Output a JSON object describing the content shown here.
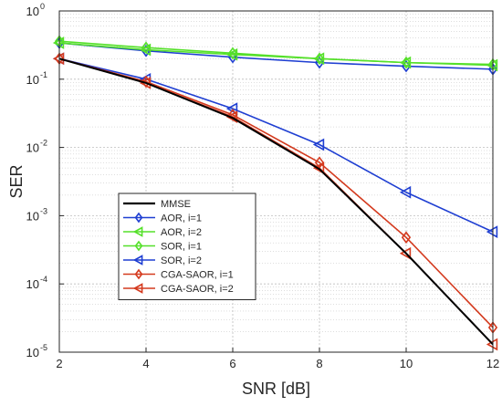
{
  "chart_data": {
    "type": "line",
    "xlabel": "SNR [dB]",
    "ylabel": "SER",
    "x": [
      2,
      4,
      6,
      8,
      10,
      12
    ],
    "xlim": [
      2,
      12
    ],
    "ylim": [
      1e-05,
      1
    ],
    "yscale": "log",
    "grid": true,
    "legend_position": "lower-left",
    "x_ticks": [
      "2",
      "4",
      "6",
      "8",
      "10",
      "12"
    ],
    "y_ticks": [
      {
        "base": "10",
        "exp": "-5"
      },
      {
        "base": "10",
        "exp": "-4"
      },
      {
        "base": "10",
        "exp": "-3"
      },
      {
        "base": "10",
        "exp": "-2"
      },
      {
        "base": "10",
        "exp": "-1"
      },
      {
        "base": "10",
        "exp": "0"
      }
    ],
    "series": [
      {
        "name": "MMSE",
        "color": "#000000",
        "marker": "none",
        "values": [
          0.2,
          0.088,
          0.027,
          0.0048,
          0.00028,
          1.3e-05
        ]
      },
      {
        "name": "AOR, i=1",
        "color": "#1f3fd2",
        "marker": "diamond",
        "values": [
          0.34,
          0.26,
          0.21,
          0.175,
          0.155,
          0.14
        ]
      },
      {
        "name": "AOR, i=2",
        "color": "#55e02a",
        "marker": "triangle-left",
        "values": [
          0.34,
          0.27,
          0.23,
          0.2,
          0.175,
          0.16
        ]
      },
      {
        "name": "SOR, i=1",
        "color": "#55e02a",
        "marker": "diamond",
        "values": [
          0.36,
          0.29,
          0.24,
          0.2,
          0.175,
          0.165
        ]
      },
      {
        "name": "SOR, i=2",
        "color": "#1f3fd2",
        "marker": "triangle-left",
        "values": [
          0.2,
          0.1,
          0.037,
          0.011,
          0.0022,
          0.00058
        ]
      },
      {
        "name": "CGA-SAOR, i=1",
        "color": "#d43a1e",
        "marker": "diamond",
        "values": [
          0.2,
          0.092,
          0.03,
          0.006,
          0.00048,
          2.3e-05
        ]
      },
      {
        "name": "CGA-SAOR, i=2",
        "color": "#d43a1e",
        "marker": "triangle-left",
        "values": [
          0.2,
          0.088,
          0.028,
          0.005,
          0.00028,
          1.3e-05
        ]
      }
    ],
    "green_mid_series_override": {
      "note_hidden": true
    }
  }
}
